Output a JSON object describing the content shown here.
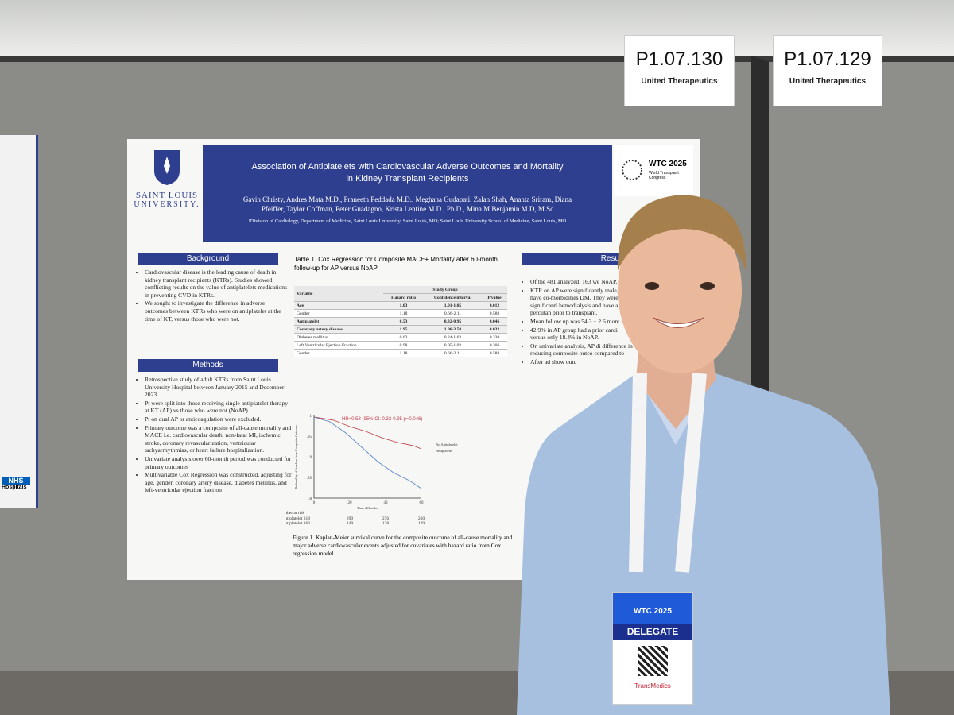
{
  "board_labels": [
    {
      "code": "P1.07.130",
      "sponsor": "United Therapeutics"
    },
    {
      "code": "P1.07.129",
      "sponsor": "United Therapeutics"
    }
  ],
  "poster": {
    "logo": [
      "SAINT LOUIS",
      "UNIVERSITY."
    ],
    "title": "Association of Antiplatelets with Cardiovascular Adverse Outcomes and Mortality in Kidney Transplant Recipients",
    "authors": "Gavin Christy, Andres Mata M.D., Praneeth Peddada M.D., Meghana Gudapati, Zalan Shah, Ananta Sriram, Diana Pfeiffer, Taylor Coffman, Peter Guadagno, Krista Lentine M.D., Ph.D., Mina M Benjamin M.D, M.Sc",
    "affiliation": "¹Division of Cardiology, Department of Medicine, Saint Louis University, Saint Louis, MO; Saint Louis University School of Medicine, Saint Louis, MO",
    "conference": "WTC 2025",
    "conference_sub": "World Transplant Congress",
    "background": {
      "heading": "Background",
      "items": [
        "Cardiovascular disease is the leading cause of death in kidney transplant recipients (KTRs). Studies showed conflicting results on the value of antiplatelets medications in preventing CVD in KTRs.",
        "We sought to investigate the difference in adverse outcomes between KTRs who were on antiplatelet at the time of KT, versus those who were not."
      ]
    },
    "methods": {
      "heading": "Methods",
      "items": [
        "Retrospective study of adult KTRs from Saint Louis University Hospital between January 2015 and December 2023.",
        "Pt were split into those receiving single antiplatelet therapy at KT (AP) vs those who were not (NoAP).",
        "Pt on dual AP or anticoagulation were excluded.",
        "Primary outcome was a composite of all-cause mortality and MACE i.e. cardiovascular death, non-fatal MI, ischemic stroke, coronary revascularization, ventricular tachyarrhythmias, or heart failure hospitalization.",
        "Univariate analysis over 60-month period was conducted for primary outcomes",
        "Multivariable Cox Regression was constructed, adjusting for age, gender, coronary artery disease, diabetes mellitus, and left-ventricular ejection fraction"
      ]
    },
    "table": {
      "caption": "Table 1. Cox Regression for Composite MACE+ Mortality after 60-month follow-up for AP versus NoAP",
      "group_header": "Study Group",
      "columns": [
        "Variable",
        "Hazard ratio",
        "Confidence interval",
        "P value"
      ],
      "rows": [
        [
          "Age",
          "1.03",
          "1.01-1.05",
          "0.012"
        ],
        [
          "Gender",
          "1.18",
          "0.66-2.11",
          "0.588"
        ],
        [
          "Antiplatelet",
          "0.53",
          "0.32-0.95",
          "0.046"
        ],
        [
          "Coronary artery disease",
          "1.95",
          "1.06-3.58",
          "0.032"
        ],
        [
          "Diabetes mellitus",
          "0.62",
          "0.24-1.62",
          "0.330"
        ],
        [
          "Left Ventricular Ejection Fraction",
          "0.98",
          "0.95-1.02",
          "0.306"
        ],
        [
          "Gender",
          "1.18",
          "0.66-2.11",
          "0.588"
        ]
      ]
    },
    "figure": {
      "annotation": "HR=0.53 (95% CI: 0.32-0.95 p=0.046)",
      "legend": [
        "No Antiplatelet",
        "Antiplatelet"
      ],
      "y_label": "Probability of Freedom from Composite Outcome",
      "x_label": "Time (Months)",
      "yticks": [
        "1",
        ".95",
        ".9",
        ".85",
        ".8"
      ],
      "xticks": [
        "0",
        "20",
        "40",
        "60"
      ],
      "risk_title": "Number at risk",
      "risk_rows": [
        [
          "No Antiplatelet 318",
          "299",
          "276",
          "260"
        ],
        [
          "Antiplatelet 163",
          "149",
          "138",
          "129"
        ]
      ],
      "caption": "Figure 1. Kaplan-Meier survival curve for the composite outcome of all-cause mortality and major adverse cardiovascular events adjusted for covariates with hazard ratio from Cox regression model."
    },
    "results": {
      "heading": "Resul",
      "items": [
        "Of the 481 analyzed, 163 we NoAP.",
        "KTR on AP were significantly male, and have co-morbidities DM. They were also significantl hemodialysis and have a percutan prior to transplant.",
        "Mean follow up was 54.3 ± 2.6 mont",
        "42.9% in AP group had a prior cardi versus only 18.4% in NoAP.",
        "On univariate analysis, AP di difference in reducing composite outco compared to",
        "After ad show outc"
      ]
    }
  },
  "side_poster": {
    "text": "NHS",
    "sub": "Hospitals"
  },
  "badge": {
    "event": "WTC 2025",
    "role": "DELEGATE",
    "sponsor": "TransMedics"
  }
}
